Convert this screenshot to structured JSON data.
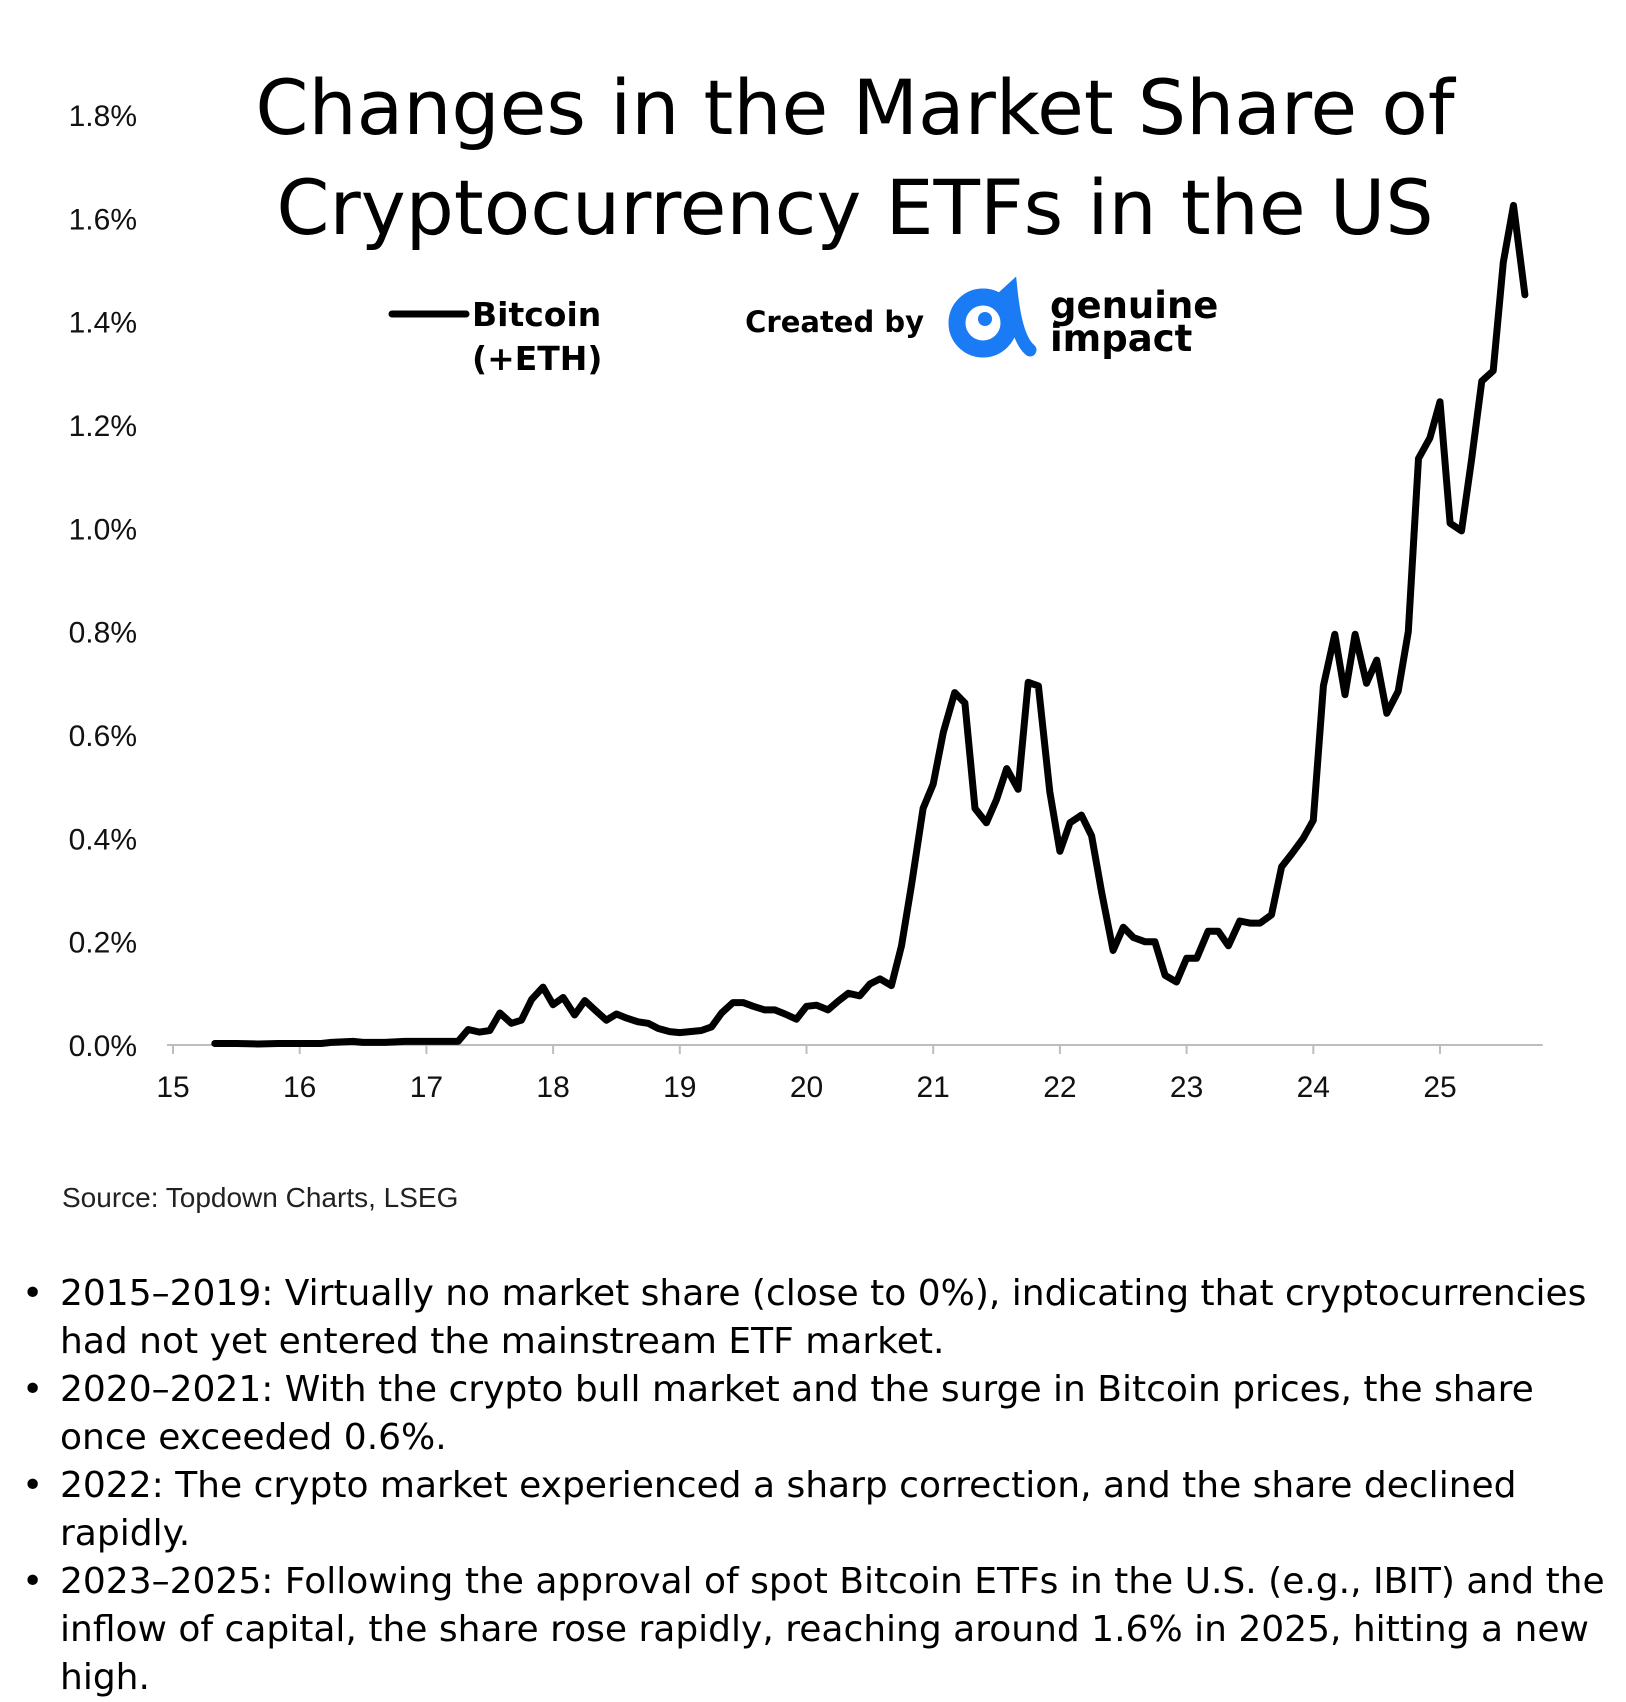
{
  "chart_data": {
    "type": "line",
    "title_lines": [
      "Changes in the Market Share of",
      "Cryptocurrency ETFs in the US"
    ],
    "xlabel": "",
    "ylabel": "",
    "ylim": [
      0,
      1.8
    ],
    "xlim": [
      15,
      25.7
    ],
    "y_ticks": [
      "0.0%",
      "0.2%",
      "0.4%",
      "0.6%",
      "0.8%",
      "1.0%",
      "1.2%",
      "1.4%",
      "1.6%",
      "1.8%"
    ],
    "x_ticks": [
      "15",
      "16",
      "17",
      "18",
      "19",
      "20",
      "21",
      "22",
      "23",
      "24",
      "25"
    ],
    "grid": false,
    "legend_position": "top-left",
    "series": [
      {
        "name": "Bitcoin (+ETH)",
        "label_lines": [
          "Bitcoin",
          "(+ETH)"
        ],
        "color": "#000000",
        "points": [
          [
            15.33,
            0.003
          ],
          [
            15.5,
            0.003
          ],
          [
            15.67,
            0.002
          ],
          [
            15.83,
            0.003
          ],
          [
            16.0,
            0.003
          ],
          [
            16.17,
            0.003
          ],
          [
            16.25,
            0.005
          ],
          [
            16.42,
            0.007
          ],
          [
            16.5,
            0.005
          ],
          [
            16.67,
            0.005
          ],
          [
            16.83,
            0.007
          ],
          [
            17.0,
            0.007
          ],
          [
            17.17,
            0.007
          ],
          [
            17.25,
            0.007
          ],
          [
            17.33,
            0.03
          ],
          [
            17.42,
            0.025
          ],
          [
            17.5,
            0.028
          ],
          [
            17.58,
            0.062
          ],
          [
            17.67,
            0.042
          ],
          [
            17.75,
            0.048
          ],
          [
            17.83,
            0.088
          ],
          [
            17.92,
            0.112
          ],
          [
            18.0,
            0.078
          ],
          [
            18.08,
            0.092
          ],
          [
            18.17,
            0.058
          ],
          [
            18.25,
            0.086
          ],
          [
            18.33,
            0.068
          ],
          [
            18.42,
            0.048
          ],
          [
            18.5,
            0.06
          ],
          [
            18.58,
            0.052
          ],
          [
            18.67,
            0.045
          ],
          [
            18.75,
            0.042
          ],
          [
            18.83,
            0.032
          ],
          [
            18.92,
            0.026
          ],
          [
            19.0,
            0.024
          ],
          [
            19.08,
            0.026
          ],
          [
            19.17,
            0.028
          ],
          [
            19.25,
            0.035
          ],
          [
            19.33,
            0.062
          ],
          [
            19.42,
            0.082
          ],
          [
            19.5,
            0.082
          ],
          [
            19.58,
            0.075
          ],
          [
            19.67,
            0.068
          ],
          [
            19.75,
            0.068
          ],
          [
            19.83,
            0.06
          ],
          [
            19.92,
            0.05
          ],
          [
            20.0,
            0.075
          ],
          [
            20.08,
            0.077
          ],
          [
            20.17,
            0.068
          ],
          [
            20.25,
            0.085
          ],
          [
            20.33,
            0.1
          ],
          [
            20.42,
            0.095
          ],
          [
            20.5,
            0.118
          ],
          [
            20.58,
            0.128
          ],
          [
            20.67,
            0.115
          ],
          [
            20.75,
            0.192
          ],
          [
            20.83,
            0.312
          ],
          [
            20.92,
            0.458
          ],
          [
            21.0,
            0.505
          ],
          [
            21.08,
            0.605
          ],
          [
            21.17,
            0.682
          ],
          [
            21.25,
            0.662
          ],
          [
            21.33,
            0.458
          ],
          [
            21.42,
            0.43
          ],
          [
            21.5,
            0.475
          ],
          [
            21.58,
            0.535
          ],
          [
            21.67,
            0.495
          ],
          [
            21.75,
            0.702
          ],
          [
            21.83,
            0.695
          ],
          [
            21.92,
            0.49
          ],
          [
            22.0,
            0.375
          ],
          [
            22.08,
            0.43
          ],
          [
            22.17,
            0.445
          ],
          [
            22.25,
            0.405
          ],
          [
            22.33,
            0.295
          ],
          [
            22.42,
            0.183
          ],
          [
            22.5,
            0.228
          ],
          [
            22.58,
            0.208
          ],
          [
            22.67,
            0.2
          ],
          [
            22.75,
            0.2
          ],
          [
            22.83,
            0.135
          ],
          [
            22.92,
            0.122
          ],
          [
            23.0,
            0.168
          ],
          [
            23.08,
            0.168
          ],
          [
            23.17,
            0.22
          ],
          [
            23.25,
            0.22
          ],
          [
            23.33,
            0.192
          ],
          [
            23.42,
            0.24
          ],
          [
            23.5,
            0.236
          ],
          [
            23.58,
            0.236
          ],
          [
            23.67,
            0.252
          ],
          [
            23.75,
            0.345
          ],
          [
            23.83,
            0.37
          ],
          [
            23.92,
            0.4
          ],
          [
            24.0,
            0.435
          ],
          [
            24.08,
            0.695
          ],
          [
            24.17,
            0.795
          ],
          [
            24.25,
            0.678
          ],
          [
            24.33,
            0.795
          ],
          [
            24.42,
            0.7
          ],
          [
            24.5,
            0.745
          ],
          [
            24.58,
            0.642
          ],
          [
            24.67,
            0.685
          ],
          [
            24.75,
            0.8
          ],
          [
            24.83,
            1.135
          ],
          [
            24.92,
            1.175
          ],
          [
            25.0,
            1.245
          ],
          [
            25.08,
            1.01
          ],
          [
            25.17,
            0.995
          ],
          [
            25.25,
            1.135
          ],
          [
            25.33,
            1.285
          ],
          [
            25.42,
            1.305
          ],
          [
            25.5,
            1.515
          ],
          [
            25.58,
            1.625
          ],
          [
            25.67,
            1.452
          ]
        ]
      }
    ],
    "annotations": {
      "credit_prefix": "Created by",
      "brand_line1": "genuine",
      "brand_line2": "impact",
      "brand_color": "#1a7bf5"
    }
  },
  "source": "Source: Topdown Charts, LSEG",
  "notes": [
    "2015–2019: Virtually no market share (close to 0%), indicating that cryptocurrencies had not yet entered the mainstream ETF market.",
    "2020–2021: With the crypto bull market and the surge in Bitcoin prices, the share once exceeded 0.6%.",
    "2022: The crypto market experienced a sharp correction, and the share declined rapidly.",
    "2023–2025: Following the approval of spot Bitcoin ETFs in the U.S. (e.g., IBIT) and the inflow of capital, the share rose rapidly, reaching around 1.6% in 2025, hitting a new high."
  ]
}
